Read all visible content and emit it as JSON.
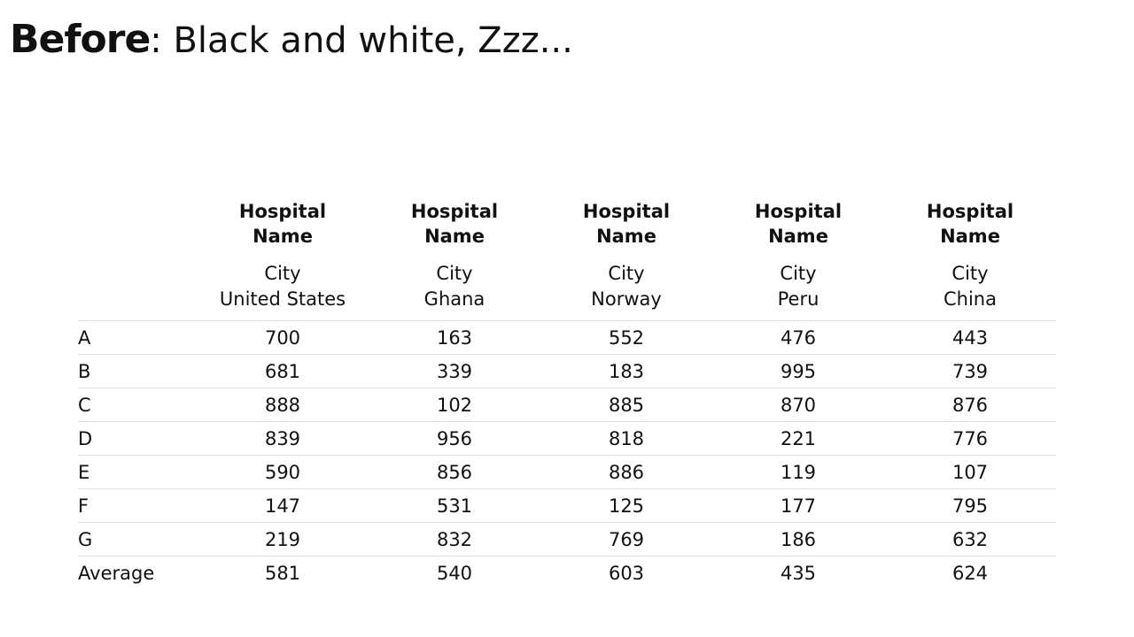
{
  "title": {
    "bold": "Before",
    "rest": ": Black and white, Zzz..."
  },
  "table": {
    "columns": [
      {
        "name_line1": "Hospital",
        "name_line2": "Name",
        "city": "City",
        "country": "United States"
      },
      {
        "name_line1": "Hospital",
        "name_line2": "Name",
        "city": "City",
        "country": "Ghana"
      },
      {
        "name_line1": "Hospital",
        "name_line2": "Name",
        "city": "City",
        "country": "Norway"
      },
      {
        "name_line1": "Hospital",
        "name_line2": "Name",
        "city": "City",
        "country": "Peru"
      },
      {
        "name_line1": "Hospital",
        "name_line2": "Name",
        "city": "City",
        "country": "China"
      }
    ],
    "rows": [
      {
        "label": "A",
        "values": [
          "700",
          "163",
          "552",
          "476",
          "443"
        ]
      },
      {
        "label": "B",
        "values": [
          "681",
          "339",
          "183",
          "995",
          "739"
        ]
      },
      {
        "label": "C",
        "values": [
          "888",
          "102",
          "885",
          "870",
          "876"
        ]
      },
      {
        "label": "D",
        "values": [
          "839",
          "956",
          "818",
          "221",
          "776"
        ]
      },
      {
        "label": "E",
        "values": [
          "590",
          "856",
          "886",
          "119",
          "107"
        ]
      },
      {
        "label": "F",
        "values": [
          "147",
          "531",
          "125",
          "177",
          "795"
        ]
      },
      {
        "label": "G",
        "values": [
          "219",
          "832",
          "769",
          "186",
          "632"
        ]
      },
      {
        "label": "Average",
        "values": [
          "581",
          "540",
          "603",
          "435",
          "624"
        ]
      }
    ]
  }
}
